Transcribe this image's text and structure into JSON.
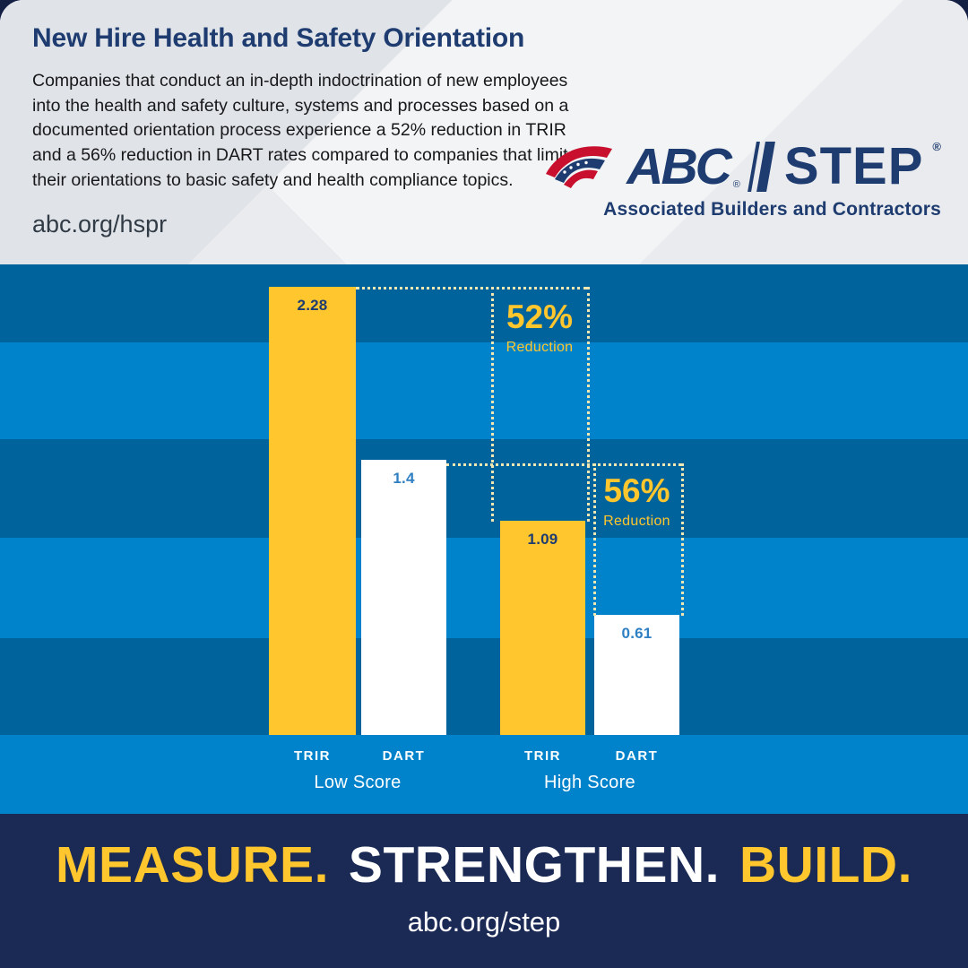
{
  "header": {
    "title": "New Hire Health and Safety Orientation",
    "body": "Companies that conduct an in-depth indoctrination of new employees into the health and safety culture, systems and processes based on a documented orientation process experience a 52% reduction in TRIR and a 56% reduction in DART rates compared to companies that limit their orientations to basic safety and health compliance topics.",
    "link": "abc.org/hspr"
  },
  "logo": {
    "abc": "ABC",
    "step": "STEP",
    "reg": "®",
    "tagline": "Associated Builders and Contractors"
  },
  "chart_data": {
    "type": "bar",
    "categories": [
      "Low Score",
      "High Score"
    ],
    "series": [
      {
        "name": "TRIR",
        "values": [
          2.28,
          1.09
        ],
        "color": "#FFC62E"
      },
      {
        "name": "DART",
        "values": [
          1.4,
          0.61
        ],
        "color": "#FFFFFF"
      }
    ],
    "value_labels": [
      "2.28",
      "1.4",
      "1.09",
      "0.61"
    ],
    "ylim": [
      0,
      2.4
    ],
    "grid": false,
    "legend_position": "none",
    "annotations": [
      {
        "pct": "52%",
        "word": "Reduction",
        "applies_to": "TRIR"
      },
      {
        "pct": "56%",
        "word": "Reduction",
        "applies_to": "DART"
      }
    ]
  },
  "footer": {
    "headline": [
      {
        "text": "MEASURE.",
        "color": "#FFC62E"
      },
      {
        "text": "STRENGTHEN.",
        "color": "#FFFFFF"
      },
      {
        "text": "BUILD.",
        "color": "#FFC62E"
      }
    ],
    "link": "abc.org/step"
  },
  "colors": {
    "navy": "#1E3C70",
    "footer_navy": "#1B2A55",
    "gold": "#FFC62E",
    "stripe_dark": "#00639B",
    "stripe_light": "#0083CB",
    "bar_value_blue": "#2F80C3",
    "dotted": "#F3E7B2",
    "flag_red": "#C8102E"
  }
}
